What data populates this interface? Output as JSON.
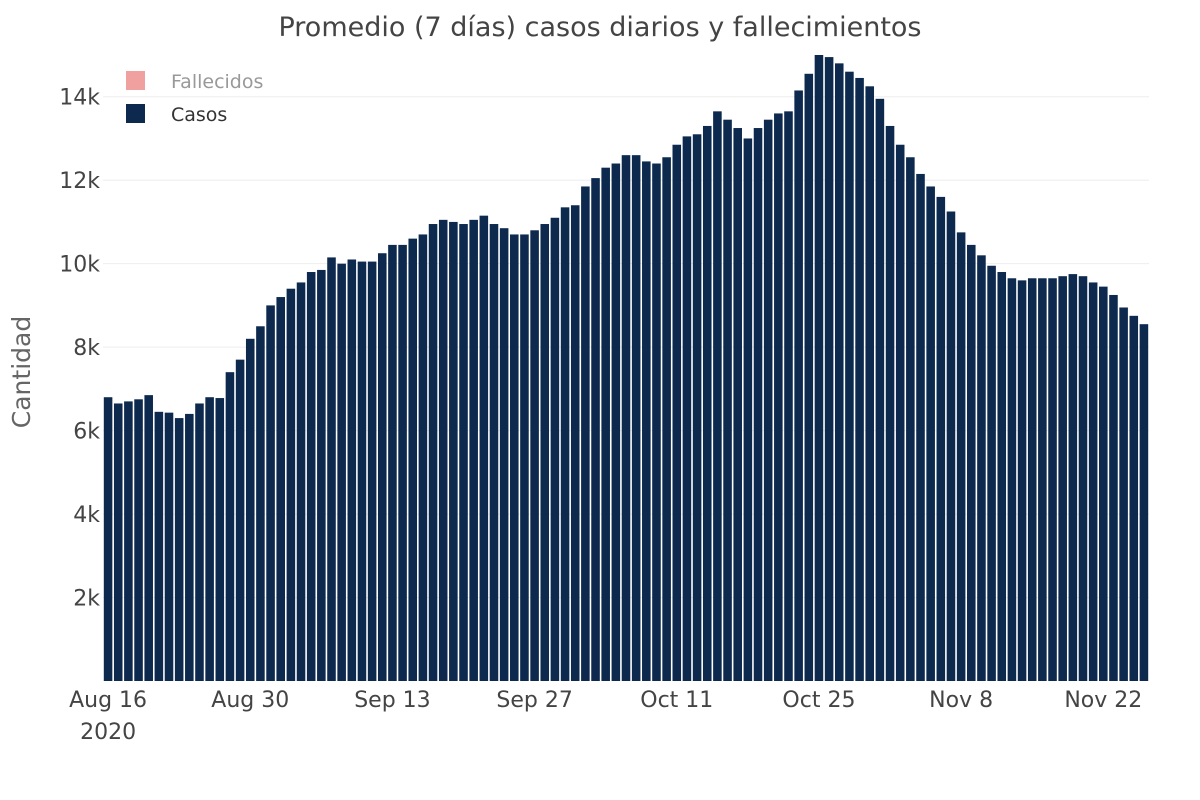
{
  "chart_data": {
    "type": "bar",
    "title": "Promedio (7 días) casos diarios y fallecimientos",
    "xlabel": "",
    "ylabel": "Cantidad",
    "ylim": [
      0,
      15000
    ],
    "grid": true,
    "legend_position": "top-left",
    "series": [
      {
        "name": "Fallecidos",
        "color": "#f0a09e",
        "legend_text_color": "#999999",
        "visible": false
      },
      {
        "name": "Casos",
        "color": "#0d2a4e",
        "legend_text_color": "#333333",
        "visible": true
      }
    ],
    "y_ticks": [
      {
        "value": 2000,
        "label": "2k"
      },
      {
        "value": 4000,
        "label": "4k"
      },
      {
        "value": 6000,
        "label": "6k"
      },
      {
        "value": 8000,
        "label": "8k"
      },
      {
        "value": 10000,
        "label": "10k"
      },
      {
        "value": 12000,
        "label": "12k"
      },
      {
        "value": 14000,
        "label": "14k"
      }
    ],
    "x_ticks": [
      {
        "index": 0,
        "label": "Aug 16",
        "sublabel": "2020"
      },
      {
        "index": 14,
        "label": "Aug 30"
      },
      {
        "index": 28,
        "label": "Sep 13"
      },
      {
        "index": 42,
        "label": "Sep 27"
      },
      {
        "index": 56,
        "label": "Oct 11"
      },
      {
        "index": 70,
        "label": "Oct 25"
      },
      {
        "index": 84,
        "label": "Nov 8"
      },
      {
        "index": 98,
        "label": "Nov 22"
      }
    ],
    "start_date": "2020-08-16",
    "values": [
      6800,
      6650,
      6700,
      6750,
      6850,
      6450,
      6430,
      6300,
      6400,
      6650,
      6800,
      6780,
      7400,
      7700,
      8200,
      8500,
      9000,
      9200,
      9400,
      9550,
      9800,
      9850,
      10150,
      10000,
      10100,
      10050,
      10050,
      10250,
      10450,
      10450,
      10600,
      10700,
      10950,
      11050,
      11000,
      10950,
      11050,
      11150,
      10950,
      10850,
      10700,
      10700,
      10800,
      10950,
      11100,
      11350,
      11400,
      11850,
      12050,
      12300,
      12400,
      12600,
      12600,
      12450,
      12400,
      12550,
      12850,
      13050,
      13100,
      13300,
      13650,
      13450,
      13250,
      13000,
      13250,
      13450,
      13600,
      13650,
      14150,
      14550,
      15000,
      14950,
      14800,
      14600,
      14450,
      14250,
      13950,
      13300,
      12850,
      12550,
      12150,
      11850,
      11600,
      11250,
      10750,
      10450,
      10200,
      9950,
      9800,
      9650,
      9600,
      9650,
      9650,
      9650,
      9700,
      9750,
      9700,
      9550,
      9450,
      9250,
      8950,
      8750,
      8550
    ]
  }
}
